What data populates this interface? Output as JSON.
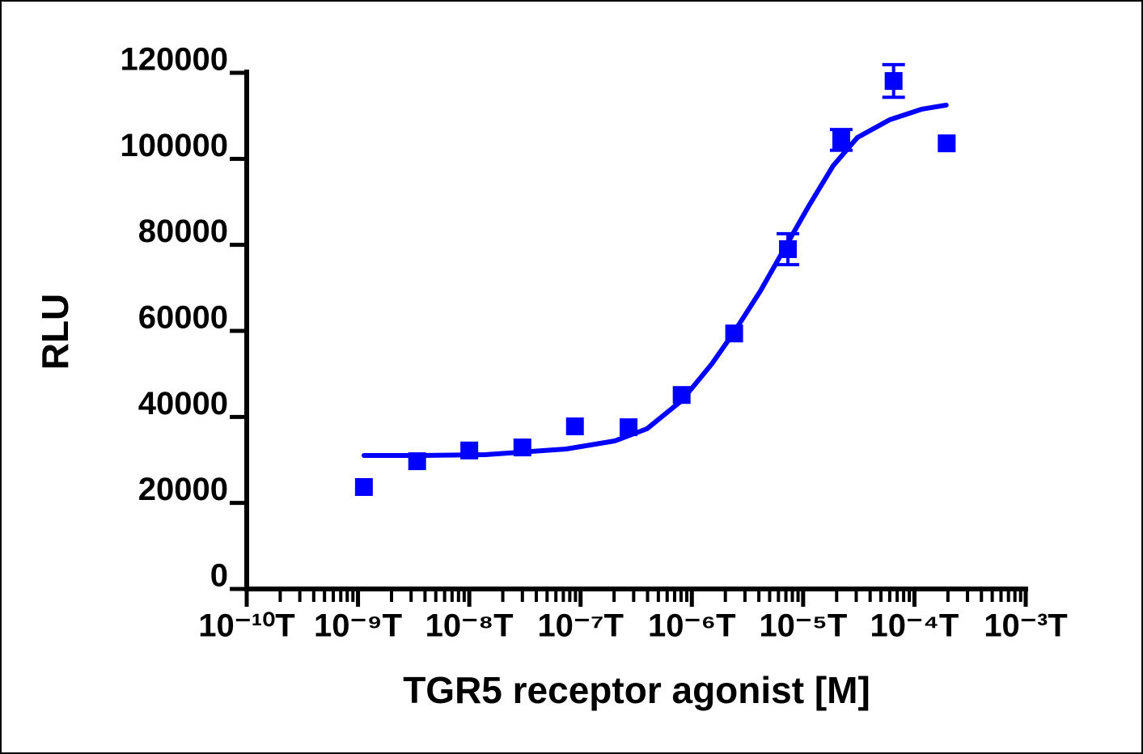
{
  "chart_data": {
    "type": "dose-response",
    "xlabel": "TGR5 receptor agonist [M]",
    "ylabel": "RLU",
    "xscale": "log",
    "color": "#0000ff",
    "xlim": [
      1e-10,
      0.001
    ],
    "xticks": [
      {
        "value": 1e-10,
        "label": "10⁻¹⁰T"
      },
      {
        "value": 1e-09,
        "label": "10⁻⁹T"
      },
      {
        "value": 1e-08,
        "label": "10⁻⁸T"
      },
      {
        "value": 1e-07,
        "label": "10⁻⁷T"
      },
      {
        "value": 1e-06,
        "label": "10⁻⁶T"
      },
      {
        "value": 1e-05,
        "label": "10⁻⁵T"
      },
      {
        "value": 0.0001,
        "label": "10⁻⁴T"
      },
      {
        "value": 0.001,
        "label": "10⁻³T"
      }
    ],
    "minor_ticks": true,
    "ylim": [
      0,
      120000
    ],
    "yticks": [
      0,
      20000,
      40000,
      60000,
      80000,
      100000,
      120000
    ],
    "points": {
      "x": [
        1.13e-09,
        3.4e-09,
        1e-08,
        3e-08,
        8.9e-08,
        2.7e-07,
        8.1e-07,
        2.4e-06,
        7.3e-06,
        2.2e-05,
        6.5e-05,
        0.000195
      ],
      "values": [
        23700,
        29700,
        32200,
        32900,
        37800,
        37600,
        45100,
        59400,
        79000,
        104400,
        118100,
        103600
      ],
      "errors": [
        null,
        null,
        null,
        null,
        null,
        null,
        null,
        null,
        3600,
        2400,
        3800,
        null
      ]
    },
    "fit": {
      "x": [
        1.13e-09,
        3.66e-09,
        1.39e-08,
        7.43e-08,
        2.03e-07,
        3.95e-07,
        8.13e-07,
        1.51e-06,
        2.41e-06,
        4.12e-06,
        7.28e-06,
        1.12e-05,
        1.86e-05,
        3.07e-05,
        6e-05,
        0.000117,
        0.000193
      ],
      "values": [
        31040,
        31040,
        31220,
        32540,
        34420,
        37240,
        43830,
        52300,
        59820,
        69230,
        80500,
        88970,
        98380,
        104960,
        109100,
        111550,
        112500
      ]
    }
  }
}
